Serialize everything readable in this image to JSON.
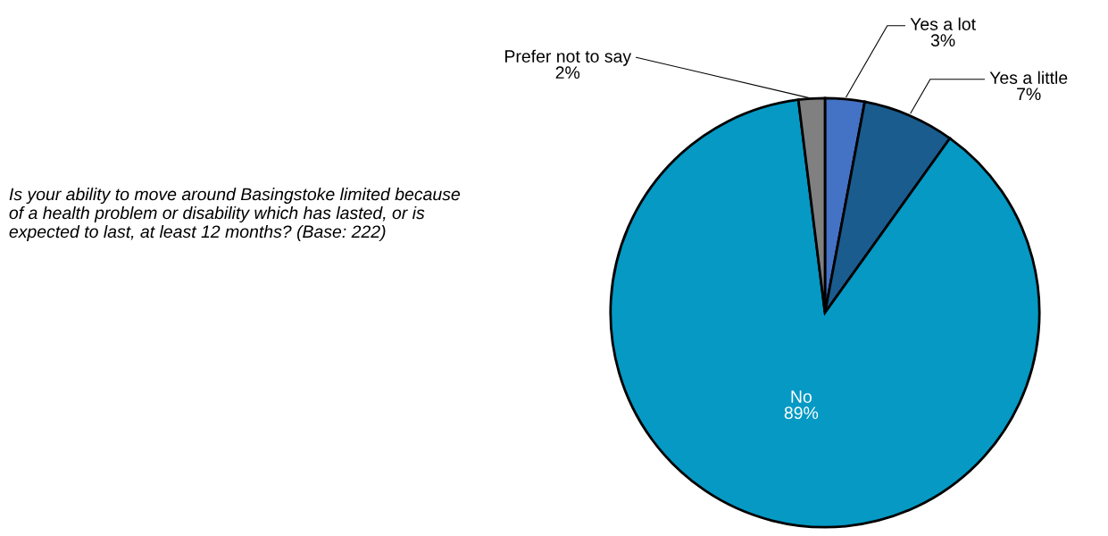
{
  "chart_data": {
    "type": "pie",
    "categories": [
      "Yes a lot",
      "Yes a little",
      "No",
      "Prefer not to say"
    ],
    "values": [
      3,
      7,
      89,
      2
    ],
    "value_labels": [
      "3%",
      "7%",
      "89%",
      "2%"
    ],
    "colors": [
      "#4472c4",
      "#1a5c8e",
      "#0599c4",
      "#808080"
    ],
    "legend": false,
    "annotations": [
      "Is your ability to move around Basingstoke limited because of a health problem or disability which has lasted, or is expected to last, at least 12 months? (Base: 222)"
    ]
  }
}
